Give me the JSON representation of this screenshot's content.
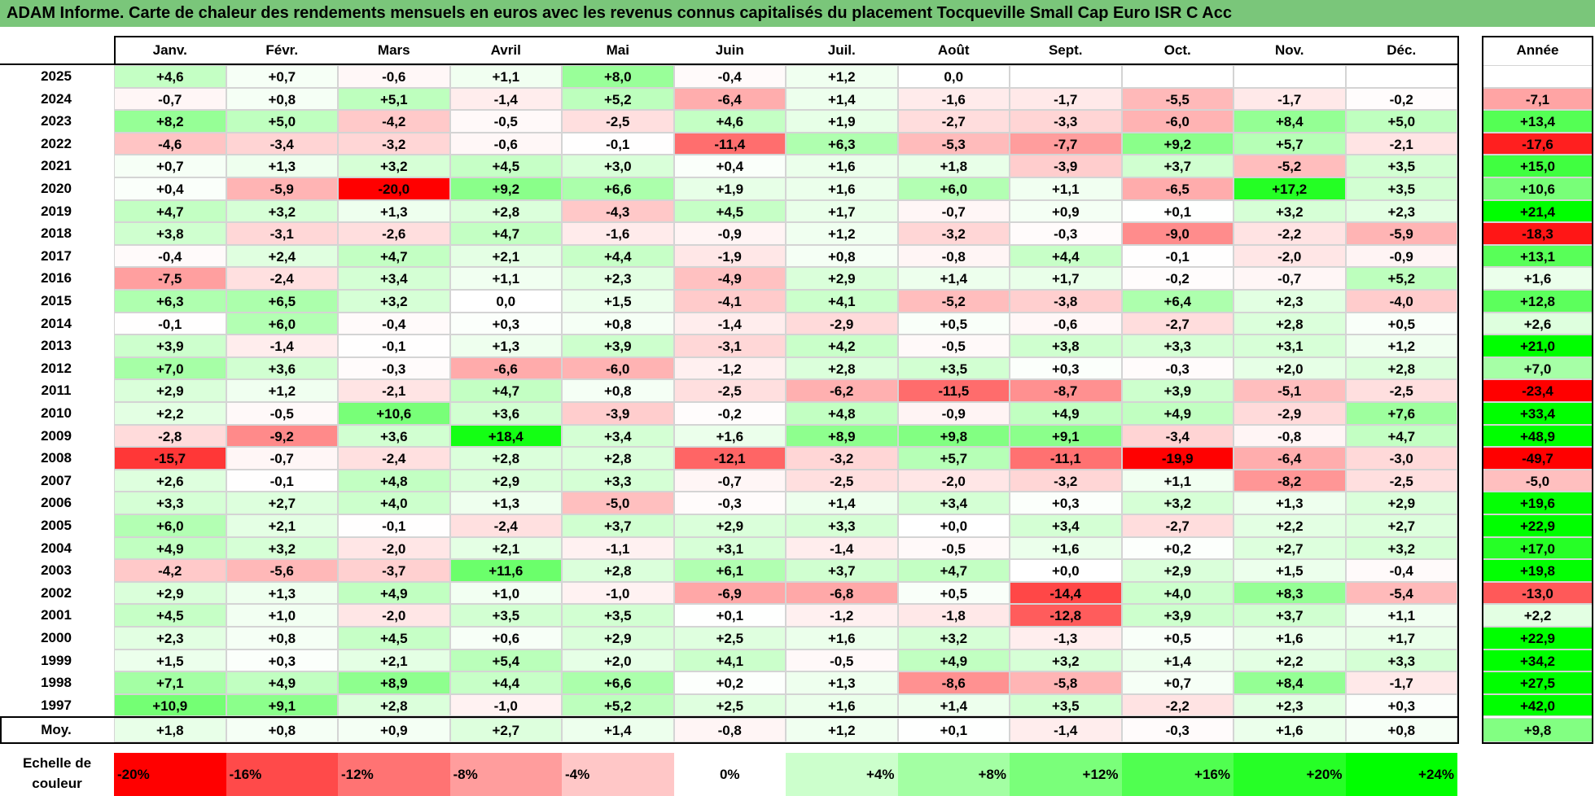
{
  "title": "ADAM Informe. Carte de chaleur des rendements mensuels en euros avec les revenus connus capitalisés du placement Tocqueville Small Cap Euro ISR C Acc",
  "chart_data": {
    "type": "heatmap",
    "title": "ADAM Informe. Carte de chaleur des rendements mensuels en euros avec les revenus connus capitalisés du placement Tocqueville Small Cap Euro ISR C Acc",
    "columns": [
      "Janv.",
      "Févr.",
      "Mars",
      "Avril",
      "Mai",
      "Juin",
      "Juil.",
      "Août",
      "Sept.",
      "Oct.",
      "Nov.",
      "Déc."
    ],
    "annual_header": "Année",
    "rows": [
      {
        "year": "2025",
        "months": [
          "+4,6",
          "+0,7",
          "-0,6",
          "+1,1",
          "+8,0",
          "-0,4",
          "+1,2",
          "0,0",
          "",
          "",
          "",
          ""
        ],
        "annual": ""
      },
      {
        "year": "2024",
        "months": [
          "-0,7",
          "+0,8",
          "+5,1",
          "-1,4",
          "+5,2",
          "-6,4",
          "+1,4",
          "-1,6",
          "-1,7",
          "-5,5",
          "-1,7",
          "-0,2"
        ],
        "annual": "-7,1"
      },
      {
        "year": "2023",
        "months": [
          "+8,2",
          "+5,0",
          "-4,2",
          "-0,5",
          "-2,5",
          "+4,6",
          "+1,9",
          "-2,7",
          "-3,3",
          "-6,0",
          "+8,4",
          "+5,0"
        ],
        "annual": "+13,4"
      },
      {
        "year": "2022",
        "months": [
          "-4,6",
          "-3,4",
          "-3,2",
          "-0,6",
          "-0,1",
          "-11,4",
          "+6,3",
          "-5,3",
          "-7,7",
          "+9,2",
          "+5,7",
          "-2,1"
        ],
        "annual": "-17,6"
      },
      {
        "year": "2021",
        "months": [
          "+0,7",
          "+1,3",
          "+3,2",
          "+4,5",
          "+3,0",
          "+0,4",
          "+1,6",
          "+1,8",
          "-3,9",
          "+3,7",
          "-5,2",
          "+3,5"
        ],
        "annual": "+15,0"
      },
      {
        "year": "2020",
        "months": [
          "+0,4",
          "-5,9",
          "-20,0",
          "+9,2",
          "+6,6",
          "+1,9",
          "+1,6",
          "+6,0",
          "+1,1",
          "-6,5",
          "+17,2",
          "+3,5"
        ],
        "annual": "+10,6"
      },
      {
        "year": "2019",
        "months": [
          "+4,7",
          "+3,2",
          "+1,3",
          "+2,8",
          "-4,3",
          "+4,5",
          "+1,7",
          "-0,7",
          "+0,9",
          "+0,1",
          "+3,2",
          "+2,3"
        ],
        "annual": "+21,4"
      },
      {
        "year": "2018",
        "months": [
          "+3,8",
          "-3,1",
          "-2,6",
          "+4,7",
          "-1,6",
          "-0,9",
          "+1,2",
          "-3,2",
          "-0,3",
          "-9,0",
          "-2,2",
          "-5,9"
        ],
        "annual": "-18,3"
      },
      {
        "year": "2017",
        "months": [
          "-0,4",
          "+2,4",
          "+4,7",
          "+2,1",
          "+4,4",
          "-1,9",
          "+0,8",
          "-0,8",
          "+4,4",
          "-0,1",
          "-2,0",
          "-0,9"
        ],
        "annual": "+13,1"
      },
      {
        "year": "2016",
        "months": [
          "-7,5",
          "-2,4",
          "+3,4",
          "+1,1",
          "+2,3",
          "-4,9",
          "+2,9",
          "+1,4",
          "+1,7",
          "-0,2",
          "-0,7",
          "+5,2"
        ],
        "annual": "+1,6"
      },
      {
        "year": "2015",
        "months": [
          "+6,3",
          "+6,5",
          "+3,2",
          "0,0",
          "+1,5",
          "-4,1",
          "+4,1",
          "-5,2",
          "-3,8",
          "+6,4",
          "+2,3",
          "-4,0"
        ],
        "annual": "+12,8"
      },
      {
        "year": "2014",
        "months": [
          "-0,1",
          "+6,0",
          "-0,4",
          "+0,3",
          "+0,8",
          "-1,4",
          "-2,9",
          "+0,5",
          "-0,6",
          "-2,7",
          "+2,8",
          "+0,5"
        ],
        "annual": "+2,6"
      },
      {
        "year": "2013",
        "months": [
          "+3,9",
          "-1,4",
          "-0,1",
          "+1,3",
          "+3,9",
          "-3,1",
          "+4,2",
          "-0,5",
          "+3,8",
          "+3,3",
          "+3,1",
          "+1,2"
        ],
        "annual": "+21,0"
      },
      {
        "year": "2012",
        "months": [
          "+7,0",
          "+3,6",
          "-0,3",
          "-6,6",
          "-6,0",
          "-1,2",
          "+2,8",
          "+3,5",
          "+0,3",
          "-0,3",
          "+2,0",
          "+2,8"
        ],
        "annual": "+7,0"
      },
      {
        "year": "2011",
        "months": [
          "+2,9",
          "+1,2",
          "-2,1",
          "+4,7",
          "+0,8",
          "-2,5",
          "-6,2",
          "-11,5",
          "-8,7",
          "+3,9",
          "-5,1",
          "-2,5"
        ],
        "annual": "-23,4"
      },
      {
        "year": "2010",
        "months": [
          "+2,2",
          "-0,5",
          "+10,6",
          "+3,6",
          "-3,9",
          "-0,2",
          "+4,8",
          "-0,9",
          "+4,9",
          "+4,9",
          "-2,9",
          "+7,6"
        ],
        "annual": "+33,4"
      },
      {
        "year": "2009",
        "months": [
          "-2,8",
          "-9,2",
          "+3,6",
          "+18,4",
          "+3,4",
          "+1,6",
          "+8,9",
          "+9,8",
          "+9,1",
          "-3,4",
          "-0,8",
          "+4,7"
        ],
        "annual": "+48,9"
      },
      {
        "year": "2008",
        "months": [
          "-15,7",
          "-0,7",
          "-2,4",
          "+2,8",
          "+2,8",
          "-12,1",
          "-3,2",
          "+5,7",
          "-11,1",
          "-19,9",
          "-6,4",
          "-3,0"
        ],
        "annual": "-49,7"
      },
      {
        "year": "2007",
        "months": [
          "+2,6",
          "-0,1",
          "+4,8",
          "+2,9",
          "+3,3",
          "-0,7",
          "-2,5",
          "-2,0",
          "-3,2",
          "+1,1",
          "-8,2",
          "-2,5"
        ],
        "annual": "-5,0"
      },
      {
        "year": "2006",
        "months": [
          "+3,3",
          "+2,7",
          "+4,0",
          "+1,3",
          "-5,0",
          "-0,3",
          "+1,4",
          "+3,4",
          "+0,3",
          "+3,2",
          "+1,3",
          "+2,9"
        ],
        "annual": "+19,6"
      },
      {
        "year": "2005",
        "months": [
          "+6,0",
          "+2,1",
          "-0,1",
          "-2,4",
          "+3,7",
          "+2,9",
          "+3,3",
          "+0,0",
          "+3,4",
          "-2,7",
          "+2,2",
          "+2,7"
        ],
        "annual": "+22,9"
      },
      {
        "year": "2004",
        "months": [
          "+4,9",
          "+3,2",
          "-2,0",
          "+2,1",
          "-1,1",
          "+3,1",
          "-1,4",
          "-0,5",
          "+1,6",
          "+0,2",
          "+2,7",
          "+3,2"
        ],
        "annual": "+17,0"
      },
      {
        "year": "2003",
        "months": [
          "-4,2",
          "-5,6",
          "-3,7",
          "+11,6",
          "+2,8",
          "+6,1",
          "+3,7",
          "+4,7",
          "+0,0",
          "+2,9",
          "+1,5",
          "-0,4"
        ],
        "annual": "+19,8"
      },
      {
        "year": "2002",
        "months": [
          "+2,9",
          "+1,3",
          "+4,9",
          "+1,0",
          "-1,0",
          "-6,9",
          "-6,8",
          "+0,5",
          "-14,4",
          "+4,0",
          "+8,3",
          "-5,4"
        ],
        "annual": "-13,0"
      },
      {
        "year": "2001",
        "months": [
          "+4,5",
          "+1,0",
          "-2,0",
          "+3,5",
          "+3,5",
          "+0,1",
          "-1,2",
          "-1,8",
          "-12,8",
          "+3,9",
          "+3,7",
          "+1,1"
        ],
        "annual": "+2,2"
      },
      {
        "year": "2000",
        "months": [
          "+2,3",
          "+0,8",
          "+4,5",
          "+0,6",
          "+2,9",
          "+2,5",
          "+1,6",
          "+3,2",
          "-1,3",
          "+0,5",
          "+1,6",
          "+1,7"
        ],
        "annual": "+22,9"
      },
      {
        "year": "1999",
        "months": [
          "+1,5",
          "+0,3",
          "+2,1",
          "+5,4",
          "+2,0",
          "+4,1",
          "-0,5",
          "+4,9",
          "+3,2",
          "+1,4",
          "+2,2",
          "+3,3"
        ],
        "annual": "+34,2"
      },
      {
        "year": "1998",
        "months": [
          "+7,1",
          "+4,9",
          "+8,9",
          "+4,4",
          "+6,6",
          "+0,2",
          "+1,3",
          "-8,6",
          "-5,8",
          "+0,7",
          "+8,4",
          "-1,7"
        ],
        "annual": "+27,5"
      },
      {
        "year": "1997",
        "months": [
          "+10,9",
          "+9,1",
          "+2,8",
          "-1,0",
          "+5,2",
          "+2,5",
          "+1,6",
          "+1,4",
          "+3,5",
          "-2,2",
          "+2,3",
          "+0,3"
        ],
        "annual": "+42,0"
      }
    ],
    "average": {
      "label": "Moy.",
      "months": [
        "+1,8",
        "+0,8",
        "+0,9",
        "+2,7",
        "+1,4",
        "-0,8",
        "+1,2",
        "+0,1",
        "-1,4",
        "-0,3",
        "+1,6",
        "+0,8"
      ],
      "annual": "+9,8"
    },
    "color_scale": {
      "label": "Echelle de couleur",
      "steps": [
        "-20%",
        "-16%",
        "-12%",
        "-8%",
        "-4%",
        "0%",
        "+4%",
        "+8%",
        "+12%",
        "+16%",
        "+20%",
        "+24%"
      ],
      "colors": [
        "#ff0000",
        "#ff4a4a",
        "#ff7373",
        "#ff9d9d",
        "#ffc7c7",
        "#ffffff",
        "#ccffcc",
        "#a3ffa3",
        "#7aff7a",
        "#50ff50",
        "#26ff26",
        "#00ff00"
      ]
    },
    "colors": {
      "negative_max": "#ff0000",
      "neutral": "#ffffff",
      "positive_max": "#00ff00",
      "title_background": "#7ac67a"
    }
  }
}
